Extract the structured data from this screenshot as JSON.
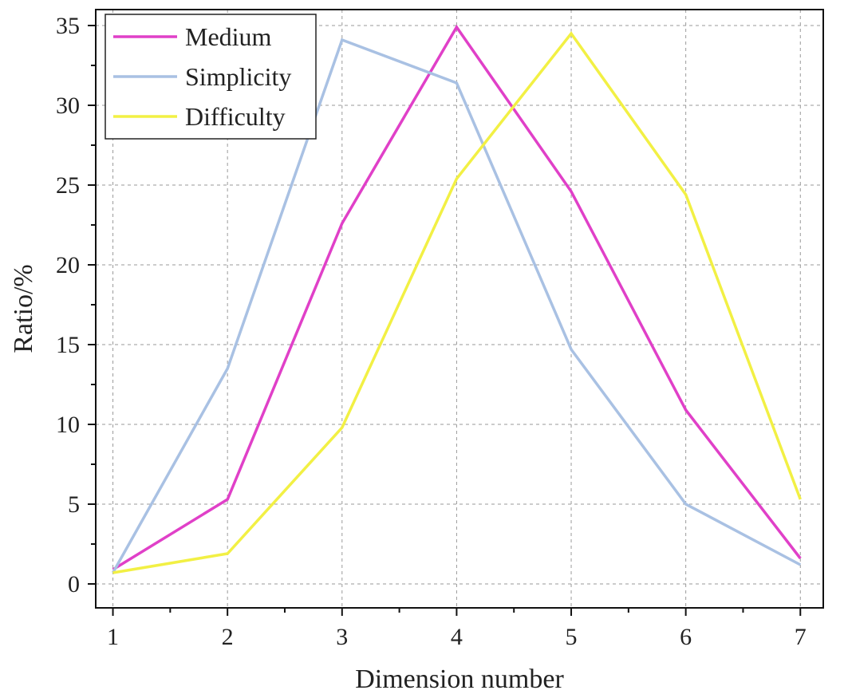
{
  "chart_data": {
    "type": "line",
    "xlabel": "Dimension number",
    "ylabel": "Ratio/%",
    "x": [
      1,
      2,
      3,
      4,
      5,
      6,
      7
    ],
    "xlim": [
      0.85,
      7.2
    ],
    "ylim": [
      -1.5,
      36
    ],
    "xticks": [
      "1",
      "2",
      "3",
      "4",
      "5",
      "6",
      "7"
    ],
    "yticks": [
      "0",
      "5",
      "10",
      "15",
      "20",
      "25",
      "30",
      "35"
    ],
    "grid": true,
    "legend_position": "top-left",
    "series": [
      {
        "name": "Medium",
        "color": "#e040c8",
        "values": [
          0.9,
          5.3,
          22.6,
          34.9,
          24.6,
          10.9,
          1.6
        ]
      },
      {
        "name": "Simplicity",
        "color": "#a9c1e3",
        "values": [
          0.7,
          13.5,
          34.1,
          31.4,
          14.7,
          5.0,
          1.2
        ]
      },
      {
        "name": "Difficulty",
        "color": "#f2f044",
        "values": [
          0.7,
          1.9,
          9.8,
          25.4,
          34.5,
          24.4,
          5.3
        ]
      }
    ]
  }
}
